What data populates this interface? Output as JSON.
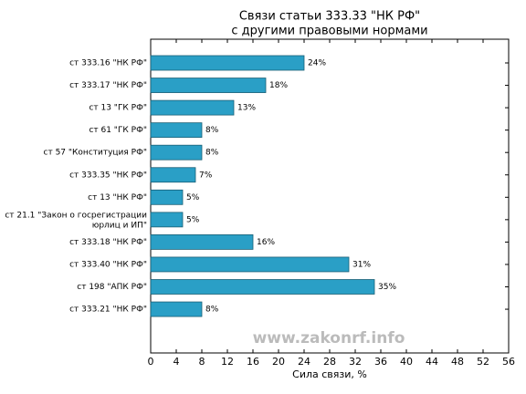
{
  "chart_data": {
    "type": "barh",
    "title": "Связи статьи 333.33 \"НК РФ\"",
    "subtitle": "с другими правовыми нормами",
    "x_label": "Сила связи, %",
    "watermark": "www.zakonrf.info",
    "categories": [
      "ст 333.16 \"НК РФ\"",
      "ст 333.17 \"НК РФ\"",
      "ст 13 \"ГК РФ\"",
      "ст 61 \"ГК РФ\"",
      "ст 57 \"Конституция РФ\"",
      "ст 333.35 \"НК РФ\"",
      "ст 13 \"НК РФ\"",
      "ст 21.1 \"Закон о госрегистрации\nюрлиц и ИП\"",
      "ст 333.18 \"НК РФ\"",
      "ст 333.40 \"НК РФ\"",
      "ст 198 \"АПК РФ\"",
      "ст 333.21 \"НК РФ\""
    ],
    "values": [
      24,
      18,
      13,
      8,
      8,
      7,
      5,
      5,
      16,
      31,
      35,
      8
    ],
    "value_labels": [
      "24%",
      "18%",
      "13%",
      "8%",
      "8%",
      "7%",
      "5%",
      "5%",
      "16%",
      "31%",
      "35%",
      "8%"
    ],
    "color": "#2a9fc6",
    "xlim": [
      0,
      56
    ],
    "xticks": [
      0,
      4,
      8,
      12,
      16,
      20,
      24,
      28,
      32,
      36,
      40,
      44,
      48,
      52,
      56
    ],
    "grid": false
  }
}
